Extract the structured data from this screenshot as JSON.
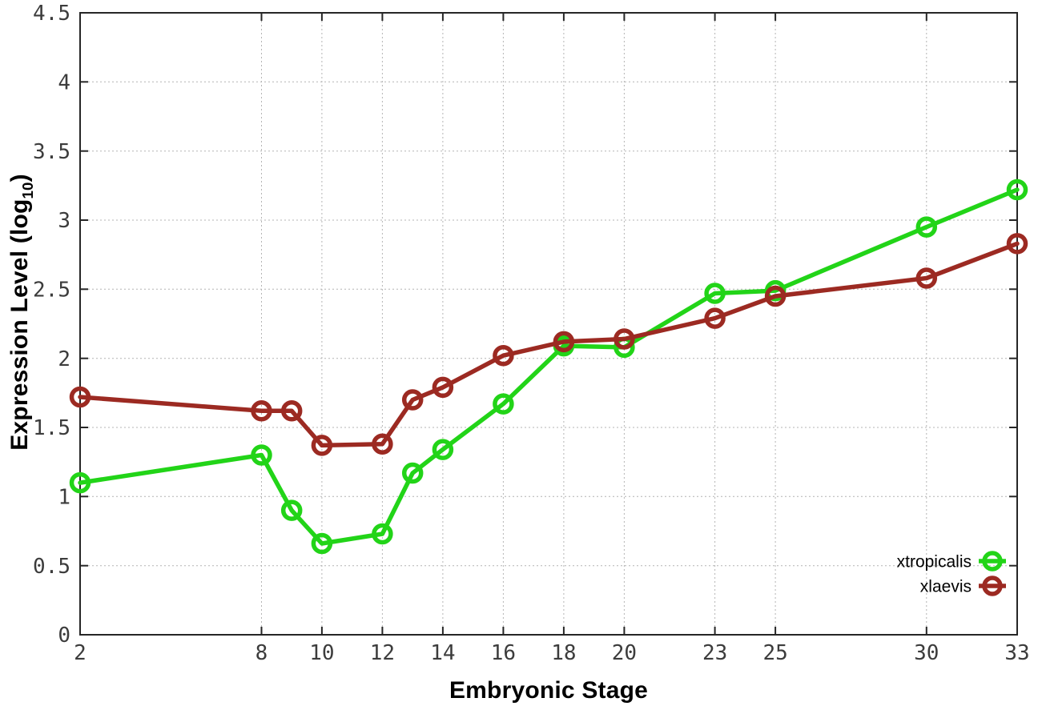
{
  "chart_data": {
    "type": "line",
    "xlabel": "Embryonic Stage",
    "ylabel": "Expression Level (log10)",
    "ylabel_parts": {
      "main": "Expression Level (log",
      "sub": "10",
      "end": ")"
    },
    "x": [
      2,
      8,
      9,
      10,
      12,
      13,
      14,
      16,
      18,
      20,
      23,
      25,
      30,
      33
    ],
    "series": [
      {
        "name": "xtropicalis",
        "color": "#22d418",
        "values": [
          1.1,
          1.3,
          0.9,
          0.66,
          0.73,
          1.17,
          1.34,
          1.67,
          2.09,
          2.08,
          2.47,
          2.49,
          2.95,
          3.22
        ]
      },
      {
        "name": "xlaevis",
        "color": "#9c2a22",
        "values": [
          1.72,
          1.62,
          1.62,
          1.37,
          1.38,
          1.7,
          1.79,
          2.02,
          2.12,
          2.14,
          2.29,
          2.45,
          2.58,
          2.83
        ]
      }
    ],
    "xlim": [
      2,
      33
    ],
    "ylim": [
      0,
      4.5
    ],
    "x_ticks": [
      2,
      8,
      10,
      12,
      14,
      16,
      18,
      20,
      23,
      25,
      30,
      33
    ],
    "y_ticks": [
      0,
      0.5,
      1,
      1.5,
      2,
      2.5,
      3,
      3.5,
      4,
      4.5
    ],
    "grid": true,
    "legend_position": "bottom-right",
    "style": {
      "background": "#ffffff",
      "border_color": "#262626",
      "grid_color": "#b4b4b4",
      "tick_label_color": "#3c3c3c"
    }
  }
}
